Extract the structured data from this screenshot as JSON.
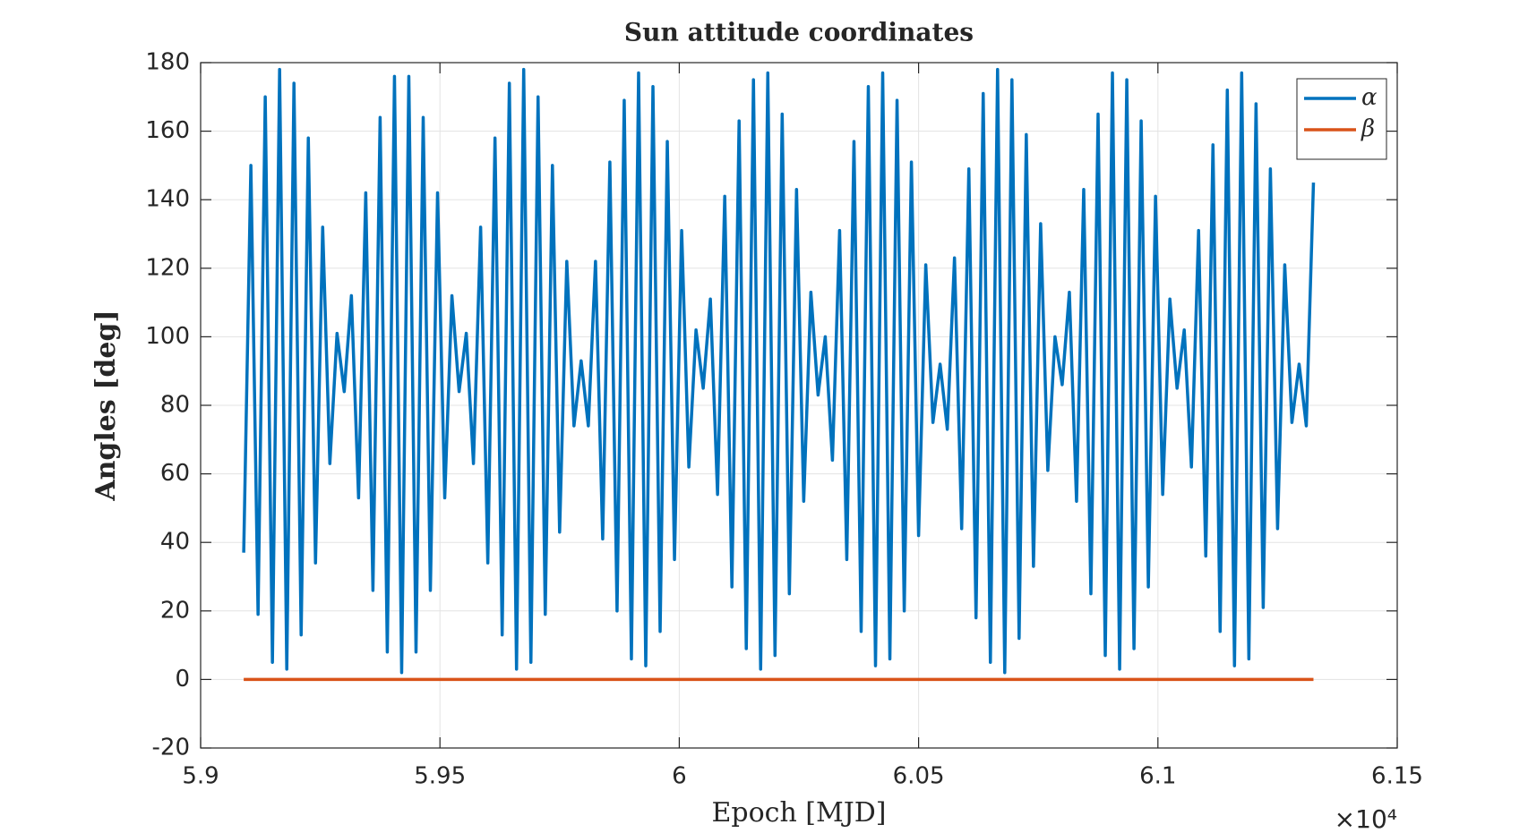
{
  "chart_data": {
    "type": "line",
    "title": "Sun attitude coordinates",
    "xlabel": "Epoch [MJD]",
    "ylabel": "Angles [deg]",
    "x_exponent": "×10⁴",
    "x": [
      59090,
      59105,
      59120,
      59135,
      59150,
      59165,
      59180,
      59195,
      59210,
      59225,
      59240,
      59255,
      59270,
      59285,
      59300,
      59315,
      59330,
      59345,
      59360,
      59375,
      59390,
      59405,
      59420,
      59435,
      59450,
      59465,
      59480,
      59495,
      59510,
      59525,
      59540,
      59555,
      59570,
      59585,
      59600,
      59615,
      59630,
      59645,
      59660,
      59675,
      59690,
      59705,
      59720,
      59735,
      59750,
      59765,
      59780,
      59795,
      59810,
      59825,
      59840,
      59855,
      59870,
      59885,
      59900,
      59915,
      59930,
      59945,
      59960,
      59975,
      59990,
      60005,
      60020,
      60035,
      60050,
      60065,
      60080,
      60095,
      60110,
      60125,
      60140,
      60155,
      60170,
      60185,
      60200,
      60215,
      60230,
      60245,
      60260,
      60275,
      60290,
      60305,
      60320,
      60335,
      60350,
      60365,
      60380,
      60395,
      60410,
      60425,
      60440,
      60455,
      60470,
      60485,
      60500,
      60515,
      60530,
      60545,
      60560,
      60575,
      60590,
      60605,
      60620,
      60635,
      60650,
      60665,
      60680,
      60695,
      60710,
      60725,
      60740,
      60755,
      60770,
      60785,
      60800,
      60815,
      60830,
      60845,
      60860,
      60875,
      60890,
      60905,
      60920,
      60935,
      60950,
      60965,
      60980,
      60995,
      61010,
      61025,
      61040,
      61055,
      61070,
      61085,
      61100,
      61115,
      61130,
      61145,
      61160,
      61175,
      61190,
      61205,
      61220,
      61235,
      61250,
      61265,
      61280,
      61295,
      61310,
      61325
    ],
    "series": [
      {
        "name": "α",
        "color": "#0072BD",
        "values": [
          37,
          150,
          19,
          170,
          5,
          178,
          3,
          174,
          13,
          158,
          34,
          132,
          63,
          101,
          84,
          112,
          53,
          142,
          26,
          164,
          8,
          176,
          2,
          176,
          8,
          164,
          26,
          142,
          53,
          112,
          84,
          101,
          63,
          132,
          34,
          158,
          13,
          174,
          3,
          178,
          5,
          170,
          19,
          150,
          43,
          122,
          74,
          93,
          74,
          122,
          41,
          151,
          20,
          169,
          6,
          177,
          4,
          173,
          14,
          157,
          35,
          131,
          62,
          102,
          85,
          111,
          54,
          141,
          27,
          163,
          9,
          175,
          3,
          177,
          7,
          165,
          25,
          143,
          52,
          113,
          83,
          100,
          64,
          131,
          35,
          157,
          14,
          173,
          4,
          177,
          6,
          169,
          20,
          151,
          42,
          121,
          75,
          92,
          73,
          123,
          44,
          149,
          18,
          171,
          5,
          178,
          2,
          175,
          12,
          159,
          33,
          133,
          61,
          100,
          86,
          113,
          52,
          143,
          25,
          165,
          7,
          177,
          3,
          175,
          9,
          163,
          27,
          141,
          54,
          111,
          85,
          102,
          62,
          131,
          36,
          156,
          14,
          172,
          4,
          177,
          6,
          168,
          21,
          149,
          44,
          121,
          75,
          92,
          74,
          145
        ]
      },
      {
        "name": "β",
        "color": "#D95319",
        "values": [
          0,
          0,
          0,
          0,
          0,
          0,
          0,
          0,
          0,
          0,
          0,
          0,
          0,
          0,
          0,
          0,
          0,
          0,
          0,
          0,
          0,
          0,
          0,
          0,
          0,
          0,
          0,
          0,
          0,
          0,
          0,
          0,
          0,
          0,
          0,
          0,
          0,
          0,
          0,
          0,
          0,
          0,
          0,
          0,
          0,
          0,
          0,
          0,
          0,
          0,
          0,
          0,
          0,
          0,
          0,
          0,
          0,
          0,
          0,
          0,
          0,
          0,
          0,
          0,
          0,
          0,
          0,
          0,
          0,
          0,
          0,
          0,
          0,
          0,
          0,
          0,
          0,
          0,
          0,
          0,
          0,
          0,
          0,
          0,
          0,
          0,
          0,
          0,
          0,
          0,
          0,
          0,
          0,
          0,
          0,
          0,
          0,
          0,
          0,
          0,
          0,
          0,
          0,
          0,
          0,
          0,
          0,
          0,
          0,
          0,
          0,
          0,
          0,
          0,
          0,
          0,
          0,
          0,
          0,
          0,
          0,
          0,
          0,
          0,
          0,
          0,
          0,
          0,
          0,
          0,
          0,
          0,
          0,
          0,
          0,
          0,
          0,
          0,
          0,
          0,
          0,
          0,
          0,
          0,
          0,
          0,
          0,
          0,
          0,
          0
        ]
      }
    ],
    "xlim": [
      59000,
      61500
    ],
    "xticks": [
      {
        "value": 59000,
        "label": "5.9"
      },
      {
        "value": 59500,
        "label": "5.95"
      },
      {
        "value": 60000,
        "label": "6"
      },
      {
        "value": 60500,
        "label": "6.05"
      },
      {
        "value": 61000,
        "label": "6.1"
      },
      {
        "value": 61500,
        "label": "6.15"
      }
    ],
    "ylim": [
      -20,
      180
    ],
    "yticks": [
      -20,
      0,
      20,
      40,
      60,
      80,
      100,
      120,
      140,
      160,
      180
    ],
    "grid": true,
    "legend": "upper right"
  }
}
